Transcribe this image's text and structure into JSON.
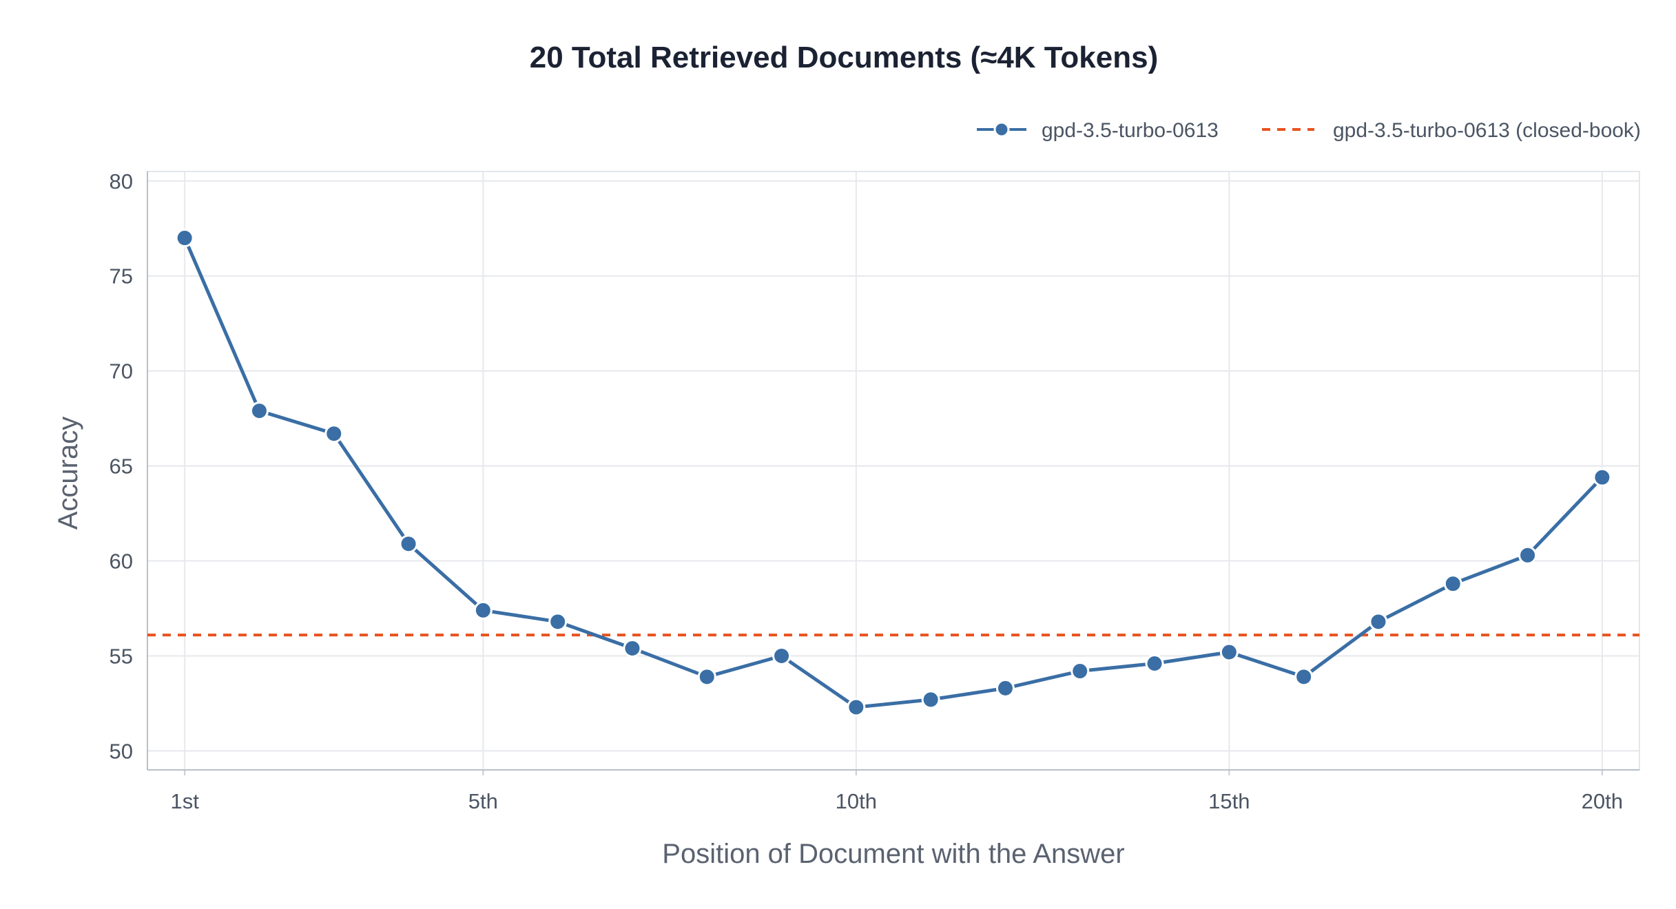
{
  "chart_data": {
    "type": "line",
    "title": "20 Total Retrieved Documents (≈4K Tokens)",
    "xlabel": "Position of Document with the Answer",
    "ylabel": "Accuracy",
    "x": [
      1,
      2,
      3,
      4,
      5,
      6,
      7,
      8,
      9,
      10,
      11,
      12,
      13,
      14,
      15,
      16,
      17,
      18,
      19,
      20
    ],
    "xlim": [
      0.5,
      20.5
    ],
    "ylim": [
      49,
      80.5
    ],
    "x_ticks": [
      {
        "value": 1,
        "label": "1st"
      },
      {
        "value": 5,
        "label": "5th"
      },
      {
        "value": 10,
        "label": "10th"
      },
      {
        "value": 15,
        "label": "15th"
      },
      {
        "value": 20,
        "label": "20th"
      }
    ],
    "y_ticks": [
      {
        "value": 50,
        "label": "50"
      },
      {
        "value": 55,
        "label": "55"
      },
      {
        "value": 60,
        "label": "60"
      },
      {
        "value": 65,
        "label": "65"
      },
      {
        "value": 70,
        "label": "70"
      },
      {
        "value": 75,
        "label": "75"
      },
      {
        "value": 80,
        "label": "80"
      }
    ],
    "grid": true,
    "legend_position": "top-right",
    "series": [
      {
        "name": "gpd-3.5-turbo-0613",
        "style": "line-with-markers",
        "color": "#3a6ea5",
        "values": [
          77.0,
          67.9,
          66.7,
          60.9,
          57.4,
          56.8,
          55.4,
          53.9,
          55.0,
          52.3,
          52.7,
          53.3,
          54.2,
          54.6,
          55.2,
          53.9,
          56.8,
          58.8,
          60.3,
          64.4
        ]
      },
      {
        "name": "gpd-3.5-turbo-0613 (closed-book)",
        "style": "dashed-horizontal",
        "color": "#e8531f",
        "value": 56.1
      }
    ]
  }
}
